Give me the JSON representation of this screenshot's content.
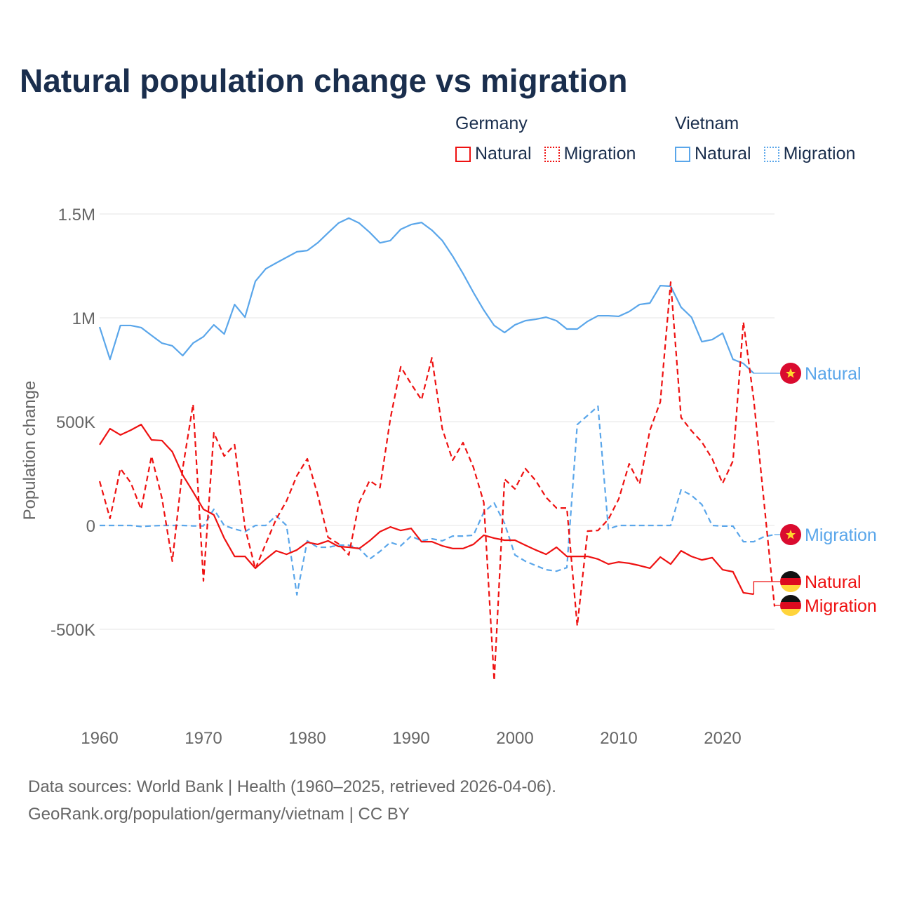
{
  "title": "Natural population change vs migration",
  "legend": {
    "groups": [
      {
        "name": "Germany",
        "items": [
          {
            "label": "Natural",
            "style": "solid"
          },
          {
            "label": "Migration",
            "style": "dotted"
          }
        ],
        "color": "#ee1111"
      },
      {
        "name": "Vietnam",
        "items": [
          {
            "label": "Natural",
            "style": "solid"
          },
          {
            "label": "Migration",
            "style": "dotted"
          }
        ],
        "color": "#5aa6ea"
      }
    ]
  },
  "sources": [
    "Data sources: World Bank | Health (1960–2025, retrieved 2026-04-06).",
    "GeoRank.org/population/germany/vietnam | CC BY"
  ],
  "chart_data": {
    "type": "line",
    "title": "Natural population change vs migration",
    "ylabel": "Population change",
    "xlabel": "",
    "xlim": [
      1960,
      2025
    ],
    "ylim": [
      -850000,
      1550000
    ],
    "yticks": [
      {
        "v": 1500000,
        "label": "1.5M"
      },
      {
        "v": 1000000,
        "label": "1M"
      },
      {
        "v": 500000,
        "label": "500K"
      },
      {
        "v": 0,
        "label": "0"
      },
      {
        "v": -500000,
        "label": "-500K"
      }
    ],
    "xticks": [
      1960,
      1970,
      1980,
      1990,
      2000,
      2010,
      2020
    ],
    "grid": true,
    "series": [
      {
        "name": "Vietnam Natural",
        "end_label": "Natural",
        "country": "Vietnam",
        "color": "#5aa6ea",
        "dash": false,
        "start": 1960,
        "values": [
          956,
          800,
          963,
          963,
          953,
          915,
          878,
          865,
          818,
          878,
          909,
          966,
          922,
          1064,
          1003,
          1176,
          1236,
          1264,
          1291,
          1318,
          1324,
          1361,
          1409,
          1456,
          1480,
          1456,
          1412,
          1361,
          1372,
          1426,
          1449,
          1459,
          1422,
          1372,
          1297,
          1213,
          1122,
          1037,
          963,
          929,
          966,
          986,
          993,
          1003,
          986,
          946,
          946,
          983,
          1010,
          1010,
          1007,
          1030,
          1064,
          1071,
          1155,
          1152,
          1051,
          1003,
          885,
          895,
          926,
          800,
          780,
          733
        ]
      },
      {
        "name": "Vietnam Migration",
        "end_label": "Migration",
        "country": "Vietnam",
        "color": "#5aa6ea",
        "dash": true,
        "start": 1960,
        "values": [
          0,
          0,
          0,
          0,
          -5,
          -2,
          0,
          0,
          0,
          -2,
          -2,
          78,
          0,
          -17,
          -30,
          0,
          0,
          47,
          0,
          -334,
          -74,
          -105,
          -105,
          -95,
          -95,
          -111,
          -162,
          -125,
          -81,
          -98,
          -51,
          -74,
          -64,
          -74,
          -51,
          -51,
          -47,
          64,
          108,
          10,
          -142,
          -172,
          -193,
          -213,
          -220,
          -203,
          486,
          530,
          574,
          -17,
          0,
          0,
          0,
          0,
          0,
          0,
          172,
          145,
          101,
          0,
          -3,
          -3,
          -78,
          -78,
          -54,
          -44
        ]
      },
      {
        "name": "Germany Natural",
        "end_label": "Natural",
        "country": "Germany",
        "color": "#ee1111",
        "dash": false,
        "start": 1960,
        "values": [
          389,
          466,
          436,
          459,
          486,
          412,
          409,
          355,
          243,
          162,
          78,
          51,
          -61,
          -149,
          -149,
          -206,
          -162,
          -122,
          -139,
          -118,
          -81,
          -91,
          -74,
          -101,
          -105,
          -111,
          -74,
          -30,
          -7,
          -24,
          -14,
          -78,
          -78,
          -98,
          -111,
          -111,
          -91,
          -47,
          -61,
          -71,
          -71,
          -95,
          -118,
          -139,
          -105,
          -149,
          -149,
          -149,
          -162,
          -186,
          -176,
          -182,
          -193,
          -206,
          -152,
          -186,
          -122,
          -149,
          -166,
          -155,
          -213,
          -223,
          -324,
          -331
        ]
      },
      {
        "name": "Germany Migration",
        "end_label": "Migration",
        "country": "Germany",
        "color": "#ee1111",
        "dash": true,
        "start": 1960,
        "values": [
          213,
          34,
          274,
          206,
          78,
          334,
          132,
          -172,
          274,
          584,
          -267,
          446,
          334,
          389,
          -10,
          -209,
          -88,
          30,
          118,
          240,
          321,
          149,
          -57,
          -88,
          -142,
          111,
          216,
          182,
          514,
          764,
          682,
          605,
          807,
          466,
          314,
          399,
          280,
          111,
          -747,
          223,
          176,
          274,
          216,
          135,
          84,
          84,
          -483,
          -27,
          -24,
          30,
          128,
          297,
          199,
          459,
          595,
          1172,
          520,
          456,
          402,
          321,
          203,
          311,
          980,
          605,
          107,
          -390
        ]
      }
    ],
    "units": "thousands"
  }
}
